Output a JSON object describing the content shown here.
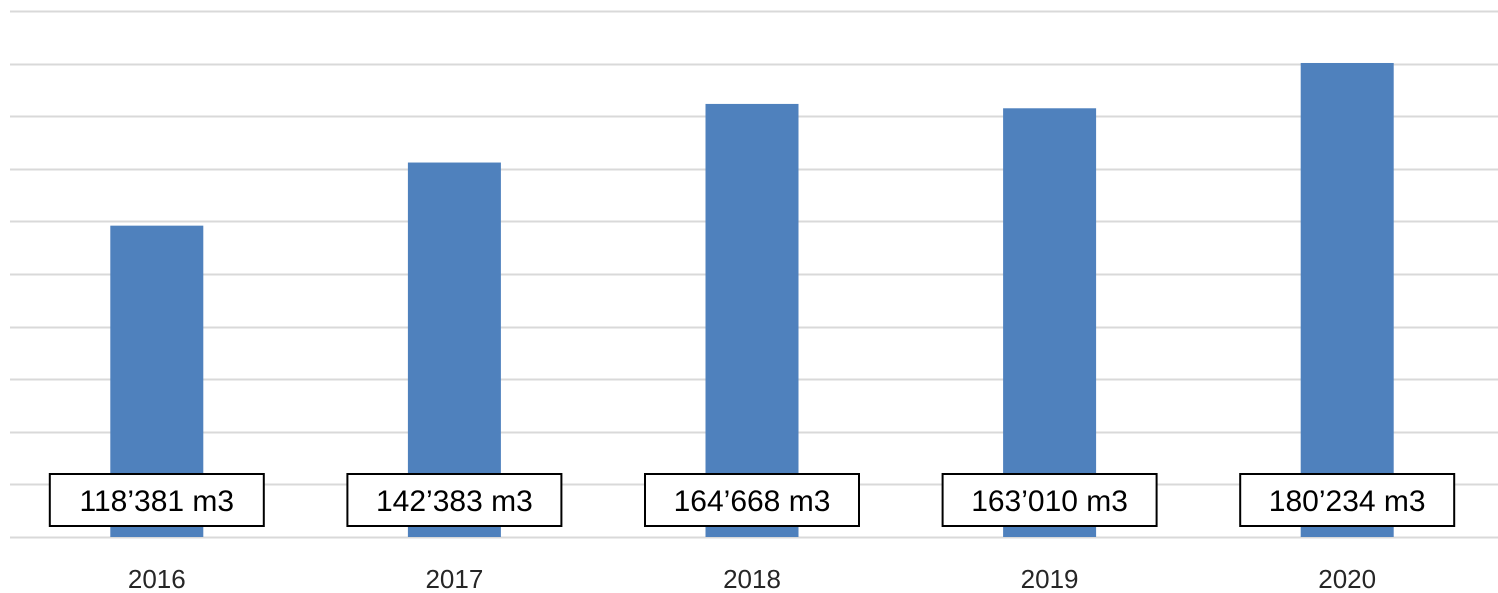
{
  "chart_data": {
    "type": "bar",
    "categories": [
      "2016",
      "2017",
      "2018",
      "2019",
      "2020"
    ],
    "values": [
      118381,
      142383,
      164668,
      163010,
      180234
    ],
    "data_labels": [
      "118’381 m3",
      "142’383 m3",
      "164’668 m3",
      "163’010 m3",
      "180’234 m3"
    ],
    "title": "",
    "xlabel": "",
    "ylabel": "",
    "ylim": [
      0,
      200000
    ],
    "y_gridlines": 10,
    "y_tick_labels_shown": false,
    "grid": true,
    "legend": "none",
    "bar_color": "#4f81bd",
    "grid_color": "#d9d9d9"
  }
}
